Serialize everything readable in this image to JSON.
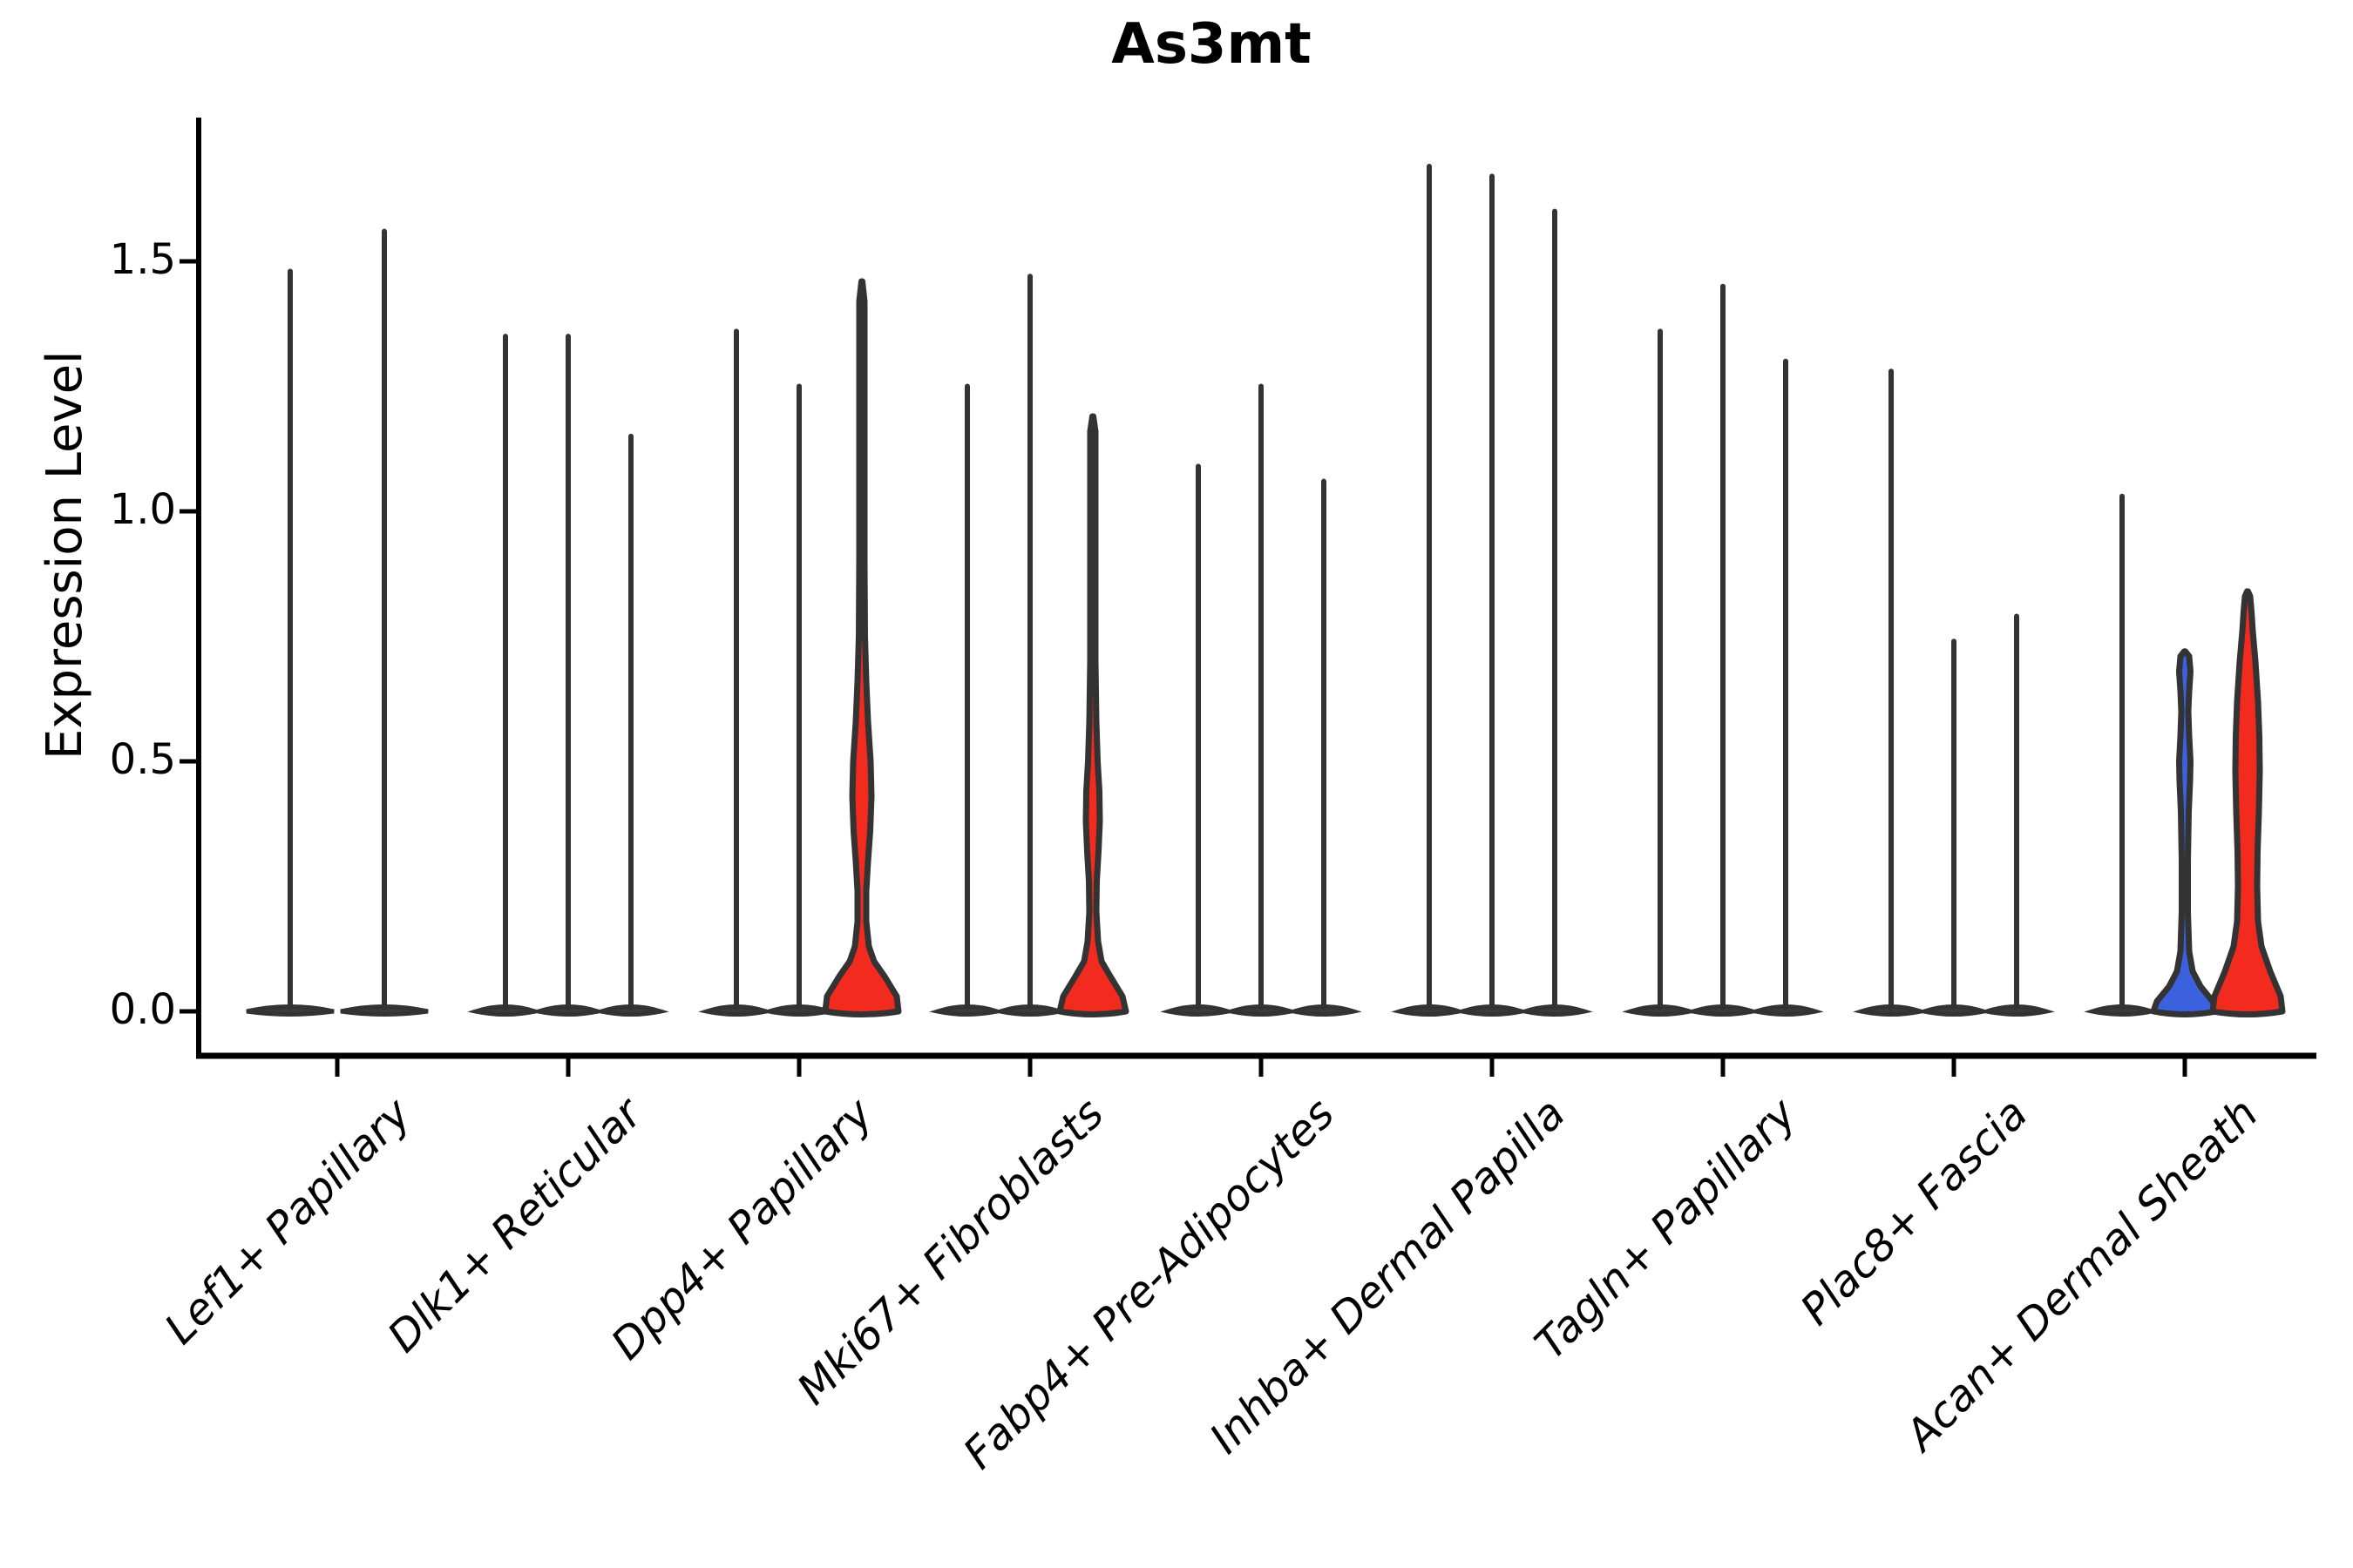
{
  "title": "As3mt",
  "y_axis": {
    "label": "Expression Level"
  },
  "colors": {
    "red_fill": "#F32B1E",
    "blue_fill": "#3B61DE",
    "violin_outline": "#333333",
    "axis_color": "#000000",
    "flat_violin_fill": "#3b3b3b"
  },
  "chart_data": {
    "type": "violin",
    "title": "As3mt",
    "ylabel": "Expression Level",
    "xlabel": "",
    "ylim": [
      0,
      1.79
    ],
    "yticks": [
      0.0,
      0.5,
      1.0,
      1.5
    ],
    "ytick_labels": [
      "1.5",
      "1.0",
      "0.5",
      "0.0"
    ],
    "grid": false,
    "legend": "none",
    "note": "Split violin plot; most violins are near-zero flat densities with a thin spike to the max expression value. 'max' = top of each violin in Expression Level units. 'profile' (for filled violins) = [expression_value, half_width_px] density outline.",
    "categories": [
      "Lef1+ Papillary",
      "Dlk1+ Reticular",
      "Dpp4+ Papillary",
      "Mki67+ Fibroblasts",
      "Fabp4+ Pre-Adipocytes",
      "Inhba+ Dermal Papilla",
      "Tagln+ Papillary",
      "Plac8+ Fascia",
      "Acan+ Dermal Sheath"
    ],
    "groups": [
      {
        "category": "Lef1+ Papillary",
        "violins": [
          {
            "max": 1.48,
            "fill": "none"
          },
          {
            "max": 1.56,
            "fill": "none"
          }
        ]
      },
      {
        "category": "Dlk1+ Reticular",
        "violins": [
          {
            "max": 1.35,
            "fill": "none"
          },
          {
            "max": 1.35,
            "fill": "none"
          },
          {
            "max": 1.15,
            "fill": "none"
          }
        ]
      },
      {
        "category": "Dpp4+ Papillary",
        "violins": [
          {
            "max": 1.36,
            "fill": "none"
          },
          {
            "max": 1.25,
            "fill": "none"
          },
          {
            "max": 1.46,
            "fill": "red",
            "profile": [
              [
                0,
                42
              ],
              [
                0.03,
                40
              ],
              [
                0.07,
                26
              ],
              [
                0.1,
                14
              ],
              [
                0.13,
                8
              ],
              [
                0.18,
                5
              ],
              [
                0.24,
                5
              ],
              [
                0.3,
                7
              ],
              [
                0.36,
                9.5
              ],
              [
                0.43,
                11
              ],
              [
                0.5,
                10
              ],
              [
                0.58,
                7
              ],
              [
                0.66,
                5
              ],
              [
                0.75,
                3.5
              ],
              [
                0.9,
                3
              ],
              [
                1.2,
                3
              ],
              [
                1.42,
                3
              ],
              [
                1.46,
                0.5
              ]
            ]
          }
        ]
      },
      {
        "category": "Mki67+ Fibroblasts",
        "violins": [
          {
            "max": 1.25,
            "fill": "none"
          },
          {
            "max": 1.47,
            "fill": "none"
          },
          {
            "max": 1.19,
            "fill": "red",
            "profile": [
              [
                0,
                38
              ],
              [
                0.03,
                34
              ],
              [
                0.07,
                20
              ],
              [
                0.1,
                10
              ],
              [
                0.14,
                6
              ],
              [
                0.2,
                4
              ],
              [
                0.26,
                4.5
              ],
              [
                0.32,
                6.5
              ],
              [
                0.38,
                8
              ],
              [
                0.44,
                7.5
              ],
              [
                0.5,
                5.5
              ],
              [
                0.58,
                4
              ],
              [
                0.7,
                3
              ],
              [
                1.0,
                3
              ],
              [
                1.16,
                3
              ],
              [
                1.19,
                0.5
              ]
            ]
          }
        ]
      },
      {
        "category": "Fabp4+ Pre-Adipocytes",
        "violins": [
          {
            "max": 1.09,
            "fill": "none"
          },
          {
            "max": 1.25,
            "fill": "none"
          },
          {
            "max": 1.06,
            "fill": "none"
          }
        ]
      },
      {
        "category": "Inhba+ Dermal Papilla",
        "violins": [
          {
            "max": 1.69,
            "fill": "none"
          },
          {
            "max": 1.67,
            "fill": "none"
          },
          {
            "max": 1.6,
            "fill": "none"
          }
        ]
      },
      {
        "category": "Tagln+ Papillary",
        "violins": [
          {
            "max": 1.36,
            "fill": "none"
          },
          {
            "max": 1.45,
            "fill": "none"
          },
          {
            "max": 1.3,
            "fill": "none"
          }
        ]
      },
      {
        "category": "Plac8+ Fascia",
        "violins": [
          {
            "max": 1.28,
            "fill": "none"
          },
          {
            "max": 0.74,
            "fill": "none"
          },
          {
            "max": 0.79,
            "fill": "none"
          }
        ]
      },
      {
        "category": "Acan+ Dermal Sheath",
        "violins": [
          {
            "max": 1.03,
            "fill": "none"
          },
          {
            "max": 0.72,
            "fill": "blue",
            "profile": [
              [
                0,
                36
              ],
              [
                0.02,
                32
              ],
              [
                0.05,
                18
              ],
              [
                0.08,
                9
              ],
              [
                0.12,
                5
              ],
              [
                0.2,
                3.5
              ],
              [
                0.3,
                3.5
              ],
              [
                0.4,
                4.5
              ],
              [
                0.46,
                6
              ],
              [
                0.5,
                6.5
              ],
              [
                0.55,
                5
              ],
              [
                0.6,
                4
              ],
              [
                0.64,
                5
              ],
              [
                0.68,
                6.5
              ],
              [
                0.71,
                5
              ],
              [
                0.72,
                0.5
              ]
            ]
          },
          {
            "max": 0.84,
            "fill": "red",
            "profile": [
              [
                0,
                40
              ],
              [
                0.03,
                38
              ],
              [
                0.08,
                26
              ],
              [
                0.13,
                16
              ],
              [
                0.18,
                12
              ],
              [
                0.25,
                11
              ],
              [
                0.32,
                11.5
              ],
              [
                0.4,
                13
              ],
              [
                0.48,
                14
              ],
              [
                0.55,
                13.5
              ],
              [
                0.62,
                12
              ],
              [
                0.7,
                9
              ],
              [
                0.76,
                6
              ],
              [
                0.8,
                4.5
              ],
              [
                0.83,
                3
              ],
              [
                0.84,
                0.5
              ]
            ]
          }
        ]
      }
    ]
  }
}
